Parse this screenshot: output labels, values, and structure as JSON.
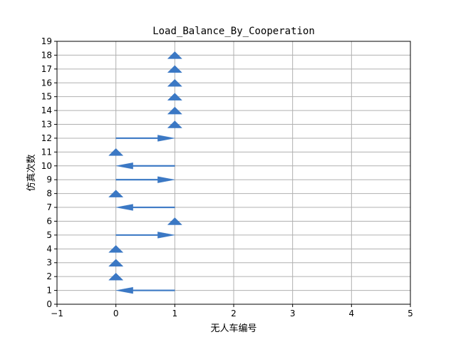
{
  "chart_data": {
    "type": "quiver",
    "title": "Load_Balance_By_Cooperation",
    "xlabel": "无人车编号",
    "ylabel": "仿真次数",
    "xlim": [
      -1,
      5
    ],
    "ylim": [
      0,
      19
    ],
    "xticks": [
      "−1",
      "0",
      "1",
      "2",
      "3",
      "4",
      "5"
    ],
    "yticks": [
      "0",
      "1",
      "2",
      "3",
      "4",
      "5",
      "6",
      "7",
      "8",
      "9",
      "10",
      "11",
      "12",
      "13",
      "14",
      "15",
      "16",
      "17",
      "18",
      "19"
    ],
    "grid": true,
    "arrow_color": "#3b78c4",
    "arrows": [
      {
        "x": 1,
        "y": 1,
        "dx": -1,
        "dy": 0
      },
      {
        "x": 0,
        "y": 2,
        "dx": 0,
        "dy": 0
      },
      {
        "x": 0,
        "y": 3,
        "dx": 0,
        "dy": 0
      },
      {
        "x": 0,
        "y": 4,
        "dx": 0,
        "dy": 0
      },
      {
        "x": 0,
        "y": 5,
        "dx": 1,
        "dy": 0
      },
      {
        "x": 1,
        "y": 6,
        "dx": 0,
        "dy": 0
      },
      {
        "x": 1,
        "y": 7,
        "dx": -1,
        "dy": 0
      },
      {
        "x": 0,
        "y": 8,
        "dx": 0,
        "dy": 0
      },
      {
        "x": 0,
        "y": 9,
        "dx": 1,
        "dy": 0
      },
      {
        "x": 1,
        "y": 10,
        "dx": -1,
        "dy": 0
      },
      {
        "x": 0,
        "y": 11,
        "dx": 0,
        "dy": 0
      },
      {
        "x": 0,
        "y": 12,
        "dx": 1,
        "dy": 0
      },
      {
        "x": 1,
        "y": 13,
        "dx": 0,
        "dy": 0
      },
      {
        "x": 1,
        "y": 14,
        "dx": 0,
        "dy": 0
      },
      {
        "x": 1,
        "y": 15,
        "dx": 0,
        "dy": 0
      },
      {
        "x": 1,
        "y": 16,
        "dx": 0,
        "dy": 0
      },
      {
        "x": 1,
        "y": 17,
        "dx": 0,
        "dy": 0
      },
      {
        "x": 1,
        "y": 18,
        "dx": 0,
        "dy": 0
      }
    ]
  }
}
